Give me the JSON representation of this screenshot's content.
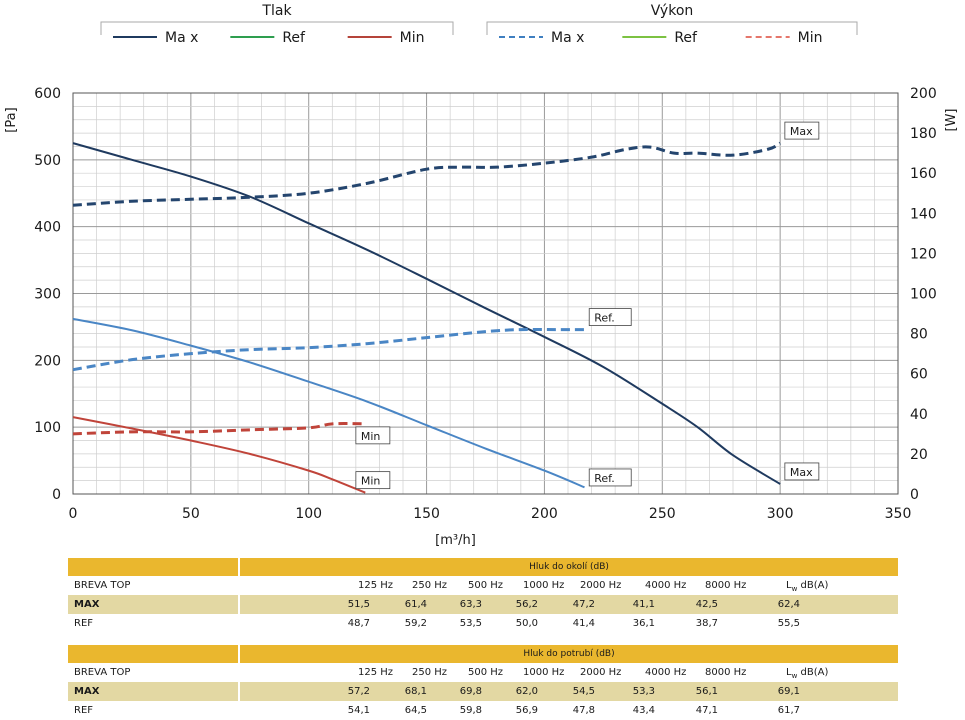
{
  "legend": {
    "groups": [
      {
        "title": "Tlak",
        "items": [
          {
            "label": "Ma x",
            "color": "#1f3a5f",
            "dash": false
          },
          {
            "label": "Ref",
            "color": "#2e9e4f",
            "dash": false
          },
          {
            "label": "Min",
            "color": "#b5443a",
            "dash": false
          }
        ]
      },
      {
        "title": "Výkon",
        "items": [
          {
            "label": "Ma x",
            "color": "#3f7fc0",
            "dash": true
          },
          {
            "label": "Ref",
            "color": "#7cc242",
            "dash": false
          },
          {
            "label": "Min",
            "color": "#e5766b",
            "dash": true
          }
        ]
      }
    ]
  },
  "chart_data": {
    "type": "line",
    "xlabel": "[m³/h]",
    "ylabel": "[Pa]",
    "y2label": "[W]",
    "xlim": [
      0,
      350
    ],
    "ylim": [
      0,
      600
    ],
    "y2lim": [
      0,
      200
    ],
    "xticks": [
      0,
      50,
      100,
      150,
      200,
      250,
      300,
      350
    ],
    "yticks": [
      0,
      100,
      200,
      300,
      400,
      500,
      600
    ],
    "y2ticks": [
      0,
      20,
      40,
      60,
      80,
      100,
      120,
      140,
      160,
      180,
      200
    ],
    "grid": true,
    "series": [
      {
        "axis": "left",
        "color": "#1f3a5f",
        "dash": false,
        "x": [
          0,
          25,
          50,
          75,
          100,
          125,
          150,
          175,
          200,
          225,
          250,
          265,
          280,
          300
        ],
        "y": [
          525,
          500,
          475,
          445,
          405,
          365,
          322,
          278,
          235,
          190,
          135,
          100,
          58,
          15
        ]
      },
      {
        "axis": "left",
        "color": "#4a86c5",
        "dash": false,
        "x": [
          0,
          25,
          50,
          75,
          100,
          125,
          150,
          175,
          200,
          217
        ],
        "y": [
          262,
          245,
          222,
          197,
          168,
          138,
          103,
          68,
          35,
          10
        ]
      },
      {
        "axis": "left",
        "color": "#c0443a",
        "dash": false,
        "x": [
          0,
          25,
          50,
          75,
          100,
          110,
          124
        ],
        "y": [
          115,
          98,
          80,
          60,
          35,
          22,
          2
        ]
      },
      {
        "axis": "right",
        "color": "#24456e",
        "dash": true,
        "x": [
          0,
          25,
          50,
          75,
          100,
          125,
          150,
          165,
          180,
          200,
          220,
          235,
          245,
          255,
          265,
          280,
          295,
          300
        ],
        "y": [
          144,
          146,
          147,
          148,
          150,
          155,
          162,
          163,
          163,
          165,
          168,
          172,
          173,
          170,
          170,
          169,
          172,
          175
        ]
      },
      {
        "axis": "right",
        "color": "#4a86c5",
        "dash": true,
        "x": [
          0,
          25,
          50,
          75,
          100,
          125,
          150,
          175,
          190,
          205,
          217
        ],
        "y": [
          62,
          67,
          70,
          72,
          73,
          75,
          78,
          81,
          82,
          82,
          82
        ]
      },
      {
        "axis": "right",
        "color": "#c0443a",
        "dash": true,
        "x": [
          0,
          25,
          50,
          75,
          100,
          110,
          124
        ],
        "y": [
          30,
          31,
          31,
          32,
          33,
          35,
          35
        ]
      }
    ],
    "annotations": [
      {
        "text": "Max",
        "x": 302,
        "y": 181,
        "axis": "right"
      },
      {
        "text": "Ref.",
        "x": 219,
        "y": 88,
        "axis": "right"
      },
      {
        "text": "Min",
        "x": 120,
        "y": 29,
        "axis": "right"
      },
      {
        "text": "Max",
        "x": 302,
        "y": 33,
        "axis": "left"
      },
      {
        "text": "Ref.",
        "x": 219,
        "y": 24,
        "axis": "left"
      },
      {
        "text": "Min",
        "x": 120,
        "y": 20,
        "axis": "left"
      }
    ]
  },
  "tables": [
    {
      "title": "Hluk do okolí (dB)",
      "row_label": "BREVA TOP",
      "freqs": [
        "125 Hz",
        "250 Hz",
        "500 Hz",
        "1000 Hz",
        "2000 Hz",
        "4000 Hz",
        "8000 Hz"
      ],
      "lw_label": "L",
      "lw_sub": "w",
      "lw_unit": " dB(A)",
      "rows": [
        {
          "name": "MAX",
          "values": [
            "51,5",
            "61,4",
            "63,3",
            "56,2",
            "47,2",
            "41,1",
            "42,5",
            "62,4"
          ]
        },
        {
          "name": "REF",
          "values": [
            "48,7",
            "59,2",
            "53,5",
            "50,0",
            "41,4",
            "36,1",
            "38,7",
            "55,5"
          ]
        }
      ]
    },
    {
      "title": "Hluk do potrubí (dB)",
      "row_label": "BREVA TOP",
      "freqs": [
        "125 Hz",
        "250 Hz",
        "500 Hz",
        "1000 Hz",
        "2000 Hz",
        "4000 Hz",
        "8000 Hz"
      ],
      "lw_label": "L",
      "lw_sub": "w",
      "lw_unit": " dB(A)",
      "rows": [
        {
          "name": "MAX",
          "values": [
            "57,2",
            "68,1",
            "69,8",
            "62,0",
            "54,5",
            "53,3",
            "56,1",
            "69,1"
          ]
        },
        {
          "name": "REF",
          "values": [
            "54,1",
            "64,5",
            "59,8",
            "56,9",
            "47,8",
            "43,4",
            "47,1",
            "61,7"
          ]
        }
      ]
    }
  ]
}
